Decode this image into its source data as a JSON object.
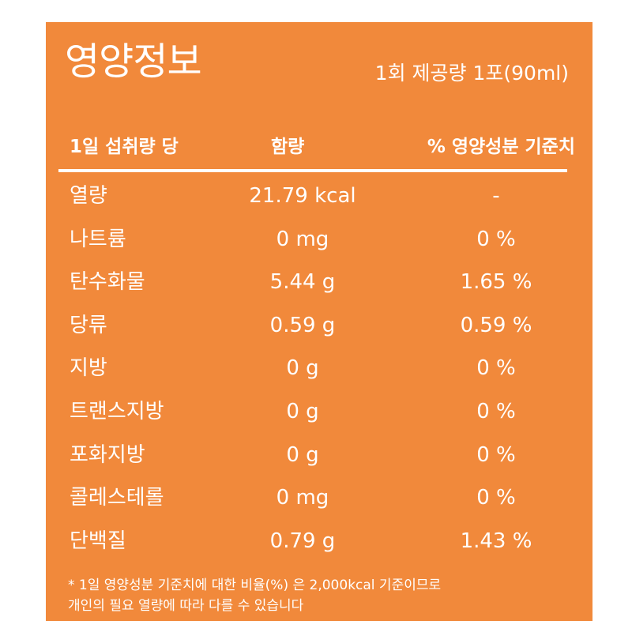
{
  "label": {
    "title": "영양정보",
    "serving": "1회 제공량 1포(90ml)",
    "headers": {
      "per": "1일 섭취량 당",
      "amount": "함량",
      "daily_value": "% 영양성분 기준치"
    },
    "rows": [
      {
        "name": "열량",
        "amount": "21.79 kcal",
        "dv": "-"
      },
      {
        "name": "나트륨",
        "amount": "0 mg",
        "dv": "0 %"
      },
      {
        "name": "탄수화물",
        "amount": "5.44 g",
        "dv": "1.65 %"
      },
      {
        "name": "당류",
        "amount": "0.59 g",
        "dv": "0.59 %"
      },
      {
        "name": "지방",
        "amount": "0 g",
        "dv": "0 %"
      },
      {
        "name": "트랜스지방",
        "amount": "0 g",
        "dv": "0 %"
      },
      {
        "name": "포화지방",
        "amount": "0 g",
        "dv": "0 %"
      },
      {
        "name": "콜레스테롤",
        "amount": "0 mg",
        "dv": "0 %"
      },
      {
        "name": "단백질",
        "amount": "0.79 g",
        "dv": "1.43 %"
      }
    ],
    "footnote": [
      "* 1일 영양성분 기준치에 대한 비율(%) 은 2,000kcal 기준이므로",
      "개인의 필요 열량에 따라 다를 수 있습니다"
    ]
  },
  "colors": {
    "background": "#F1893B",
    "text": "#FFFFFF"
  }
}
